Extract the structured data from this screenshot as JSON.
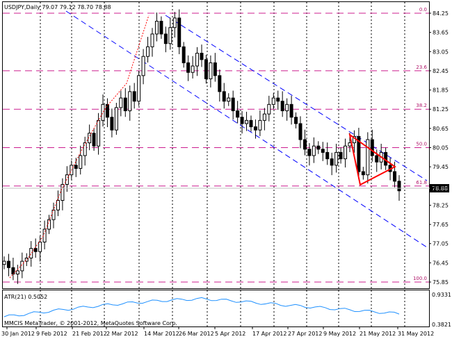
{
  "header": {
    "symbol_label": "USDJPY,Daily  79.07 79.12 78.70 78.88"
  },
  "current_price_tag": "78.88",
  "price_axis_labels": [
    "84.25",
    "83.65",
    "83.05",
    "82.45",
    "81.85",
    "81.25",
    "80.65",
    "80.05",
    "79.45",
    "78.85",
    "78.25",
    "77.65",
    "77.05",
    "76.45",
    "75.85"
  ],
  "fibonacci": {
    "color": "#cc1d8f",
    "levels": [
      {
        "label": "0.0",
        "price": 84.25
      },
      {
        "label": "23.6",
        "price": 82.45
      },
      {
        "label": "38.2",
        "price": 81.25
      },
      {
        "label": "50.0",
        "price": 80.05
      },
      {
        "label": "61.8",
        "price": 78.85
      },
      {
        "label": "100.0",
        "price": 75.85
      }
    ]
  },
  "date_labels": [
    "30 Jan 2012",
    "9 Feb 2012",
    "21 Feb 2012",
    "2 Mar 2012",
    "14 Mar 2012",
    "26 Mar 2012",
    "5 Apr 2012",
    "17 Apr 2012",
    "27 Apr 2012",
    "9 May 2012",
    "21 May 2012",
    "31 May 2012"
  ],
  "indicator": {
    "label": "ATR(21) 0.5052",
    "scale_top": "0.9331",
    "scale_bottom": "0.3821",
    "color": "#1e90ff"
  },
  "copyright": "MMCIS MetaTrader, © 2001-2012, MetaQuotes Software Corp.",
  "colors": {
    "channel": "#0000ff",
    "triangle": "#ff0000",
    "trend_dotted": "#ff0000",
    "grid": "#000000",
    "candle": "#000000"
  }
}
